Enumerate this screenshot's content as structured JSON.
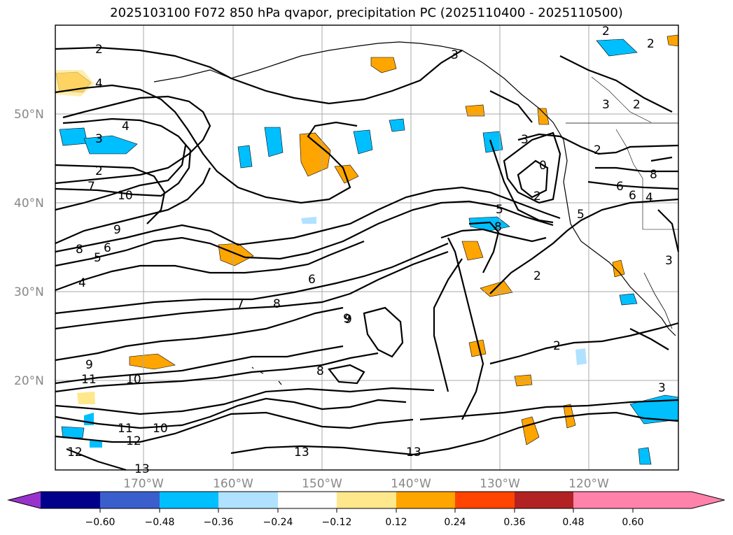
{
  "title": "2025103100 F072 850 hPa qvapor, precipitation PC (2025110400 - 2025110500)",
  "lat_labels": [
    "50°N",
    "40°N",
    "30°N",
    "20°N"
  ],
  "lon_labels": [
    "170°W",
    "160°W",
    "150°W",
    "140°W",
    "130°W",
    "120°W"
  ],
  "colorbar": {
    "ticks": [
      "−0.60",
      "−0.48",
      "−0.36",
      "−0.24",
      "−0.12",
      "0.12",
      "0.24",
      "0.36",
      "0.48",
      "0.60"
    ],
    "colors": [
      "#9932cc",
      "#00008b",
      "#3a5fcd",
      "#00bfff",
      "#b0e2ff",
      "#ffffff",
      "#ffe78c",
      "#ffa500",
      "#ff4500",
      "#b22222",
      "#ff82ab"
    ]
  },
  "contour_labels": [
    "2",
    "4",
    "3",
    "4",
    "2",
    "7",
    "10",
    "9",
    "8",
    "6",
    "5",
    "4",
    "7",
    "8",
    "6",
    "9",
    "9",
    "11",
    "10",
    "11",
    "10",
    "12",
    "12",
    "13",
    "13",
    "13",
    "8",
    "2",
    "3",
    "0",
    "2",
    "8",
    "5",
    "2",
    "2",
    "2",
    "3",
    "6",
    "8",
    "3",
    "4",
    "3",
    "2",
    "5",
    "9",
    "6",
    "2",
    "3"
  ]
}
